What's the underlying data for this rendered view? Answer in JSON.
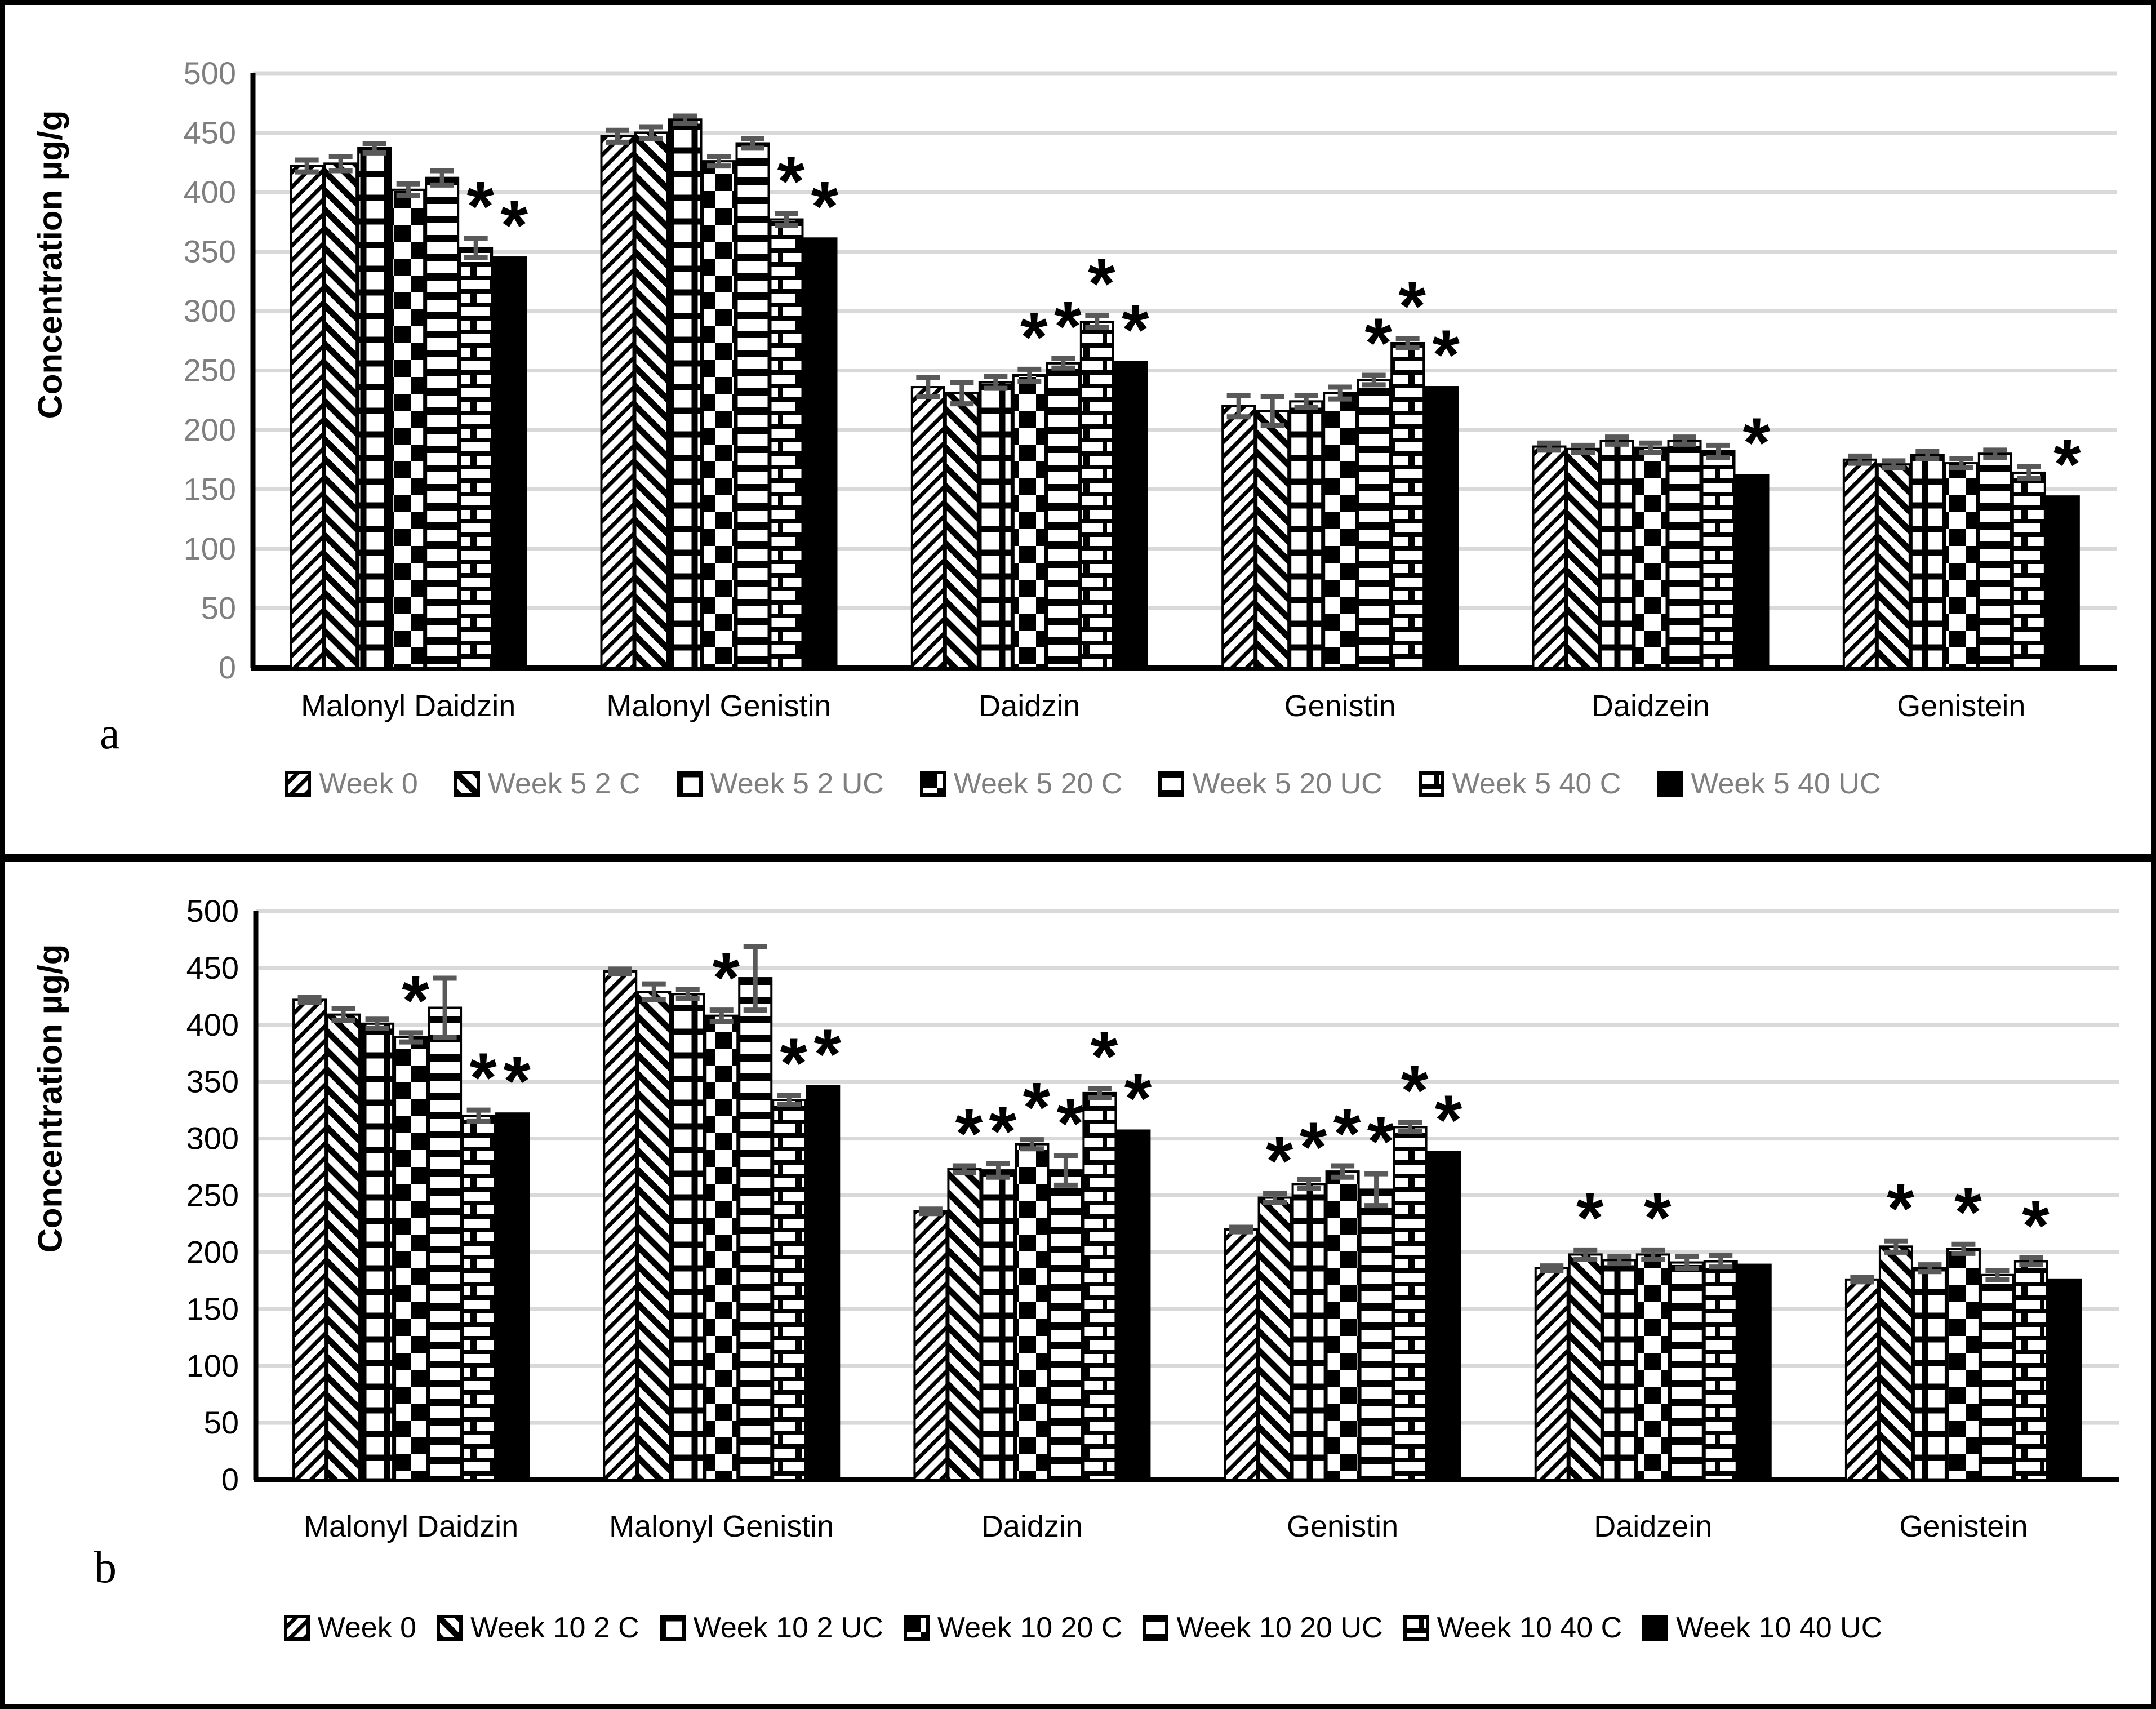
{
  "figure": {
    "border_color": "#000000",
    "background": "#ffffff",
    "gridline_color": "#d9d9d9",
    "error_bar_color": "#595959",
    "significance_marker": "*"
  },
  "chart_data": [
    {
      "type": "bar",
      "panel_label": "a",
      "ylabel": "Concentration µg/g",
      "ylim": [
        0,
        500
      ],
      "ytick_step": 50,
      "yticks": [
        0,
        50,
        100,
        150,
        200,
        250,
        300,
        350,
        400,
        450,
        500
      ],
      "grid": true,
      "legend_position": "bottom",
      "tick_label_color": "#7f7f7f",
      "legend_text_color": "#7f7f7f",
      "categories": [
        "Malonyl Daidzin",
        "Malonyl Genistin",
        "Daidzin",
        "Genistin",
        "Daidzein",
        "Genistein"
      ],
      "series": [
        {
          "name": "Week 0",
          "pattern": "diag-up",
          "values": [
            422,
            447,
            236,
            220,
            186,
            175
          ],
          "errors": [
            5,
            5,
            8,
            9,
            3,
            3
          ],
          "significant": [
            0,
            0,
            0,
            0,
            0,
            0
          ]
        },
        {
          "name": "Week 5 2 C",
          "pattern": "diag-down",
          "values": [
            424,
            450,
            231,
            216,
            184,
            171
          ],
          "errors": [
            6,
            5,
            9,
            12,
            3,
            3
          ],
          "significant": [
            0,
            0,
            0,
            0,
            0,
            0
          ]
        },
        {
          "name": "Week 5 2 UC",
          "pattern": "grid",
          "values": [
            437,
            461,
            240,
            224,
            191,
            179
          ],
          "errors": [
            4,
            3,
            5,
            5,
            3,
            3
          ],
          "significant": [
            0,
            0,
            0,
            0,
            0,
            0
          ]
        },
        {
          "name": "Week 5 20 C",
          "pattern": "checker",
          "values": [
            402,
            426,
            246,
            231,
            185,
            172
          ],
          "errors": [
            5,
            4,
            5,
            5,
            4,
            4
          ],
          "significant": [
            0,
            0,
            1,
            0,
            0,
            0
          ]
        },
        {
          "name": "Week 5 20 UC",
          "pattern": "hlines",
          "values": [
            412,
            441,
            256,
            242,
            191,
            180
          ],
          "errors": [
            6,
            4,
            4,
            4,
            3,
            3
          ],
          "significant": [
            0,
            0,
            1,
            1,
            0,
            0
          ]
        },
        {
          "name": "Week 5 40 C",
          "pattern": "brick",
          "values": [
            353,
            377,
            291,
            273,
            182,
            164
          ],
          "errors": [
            8,
            5,
            5,
            4,
            5,
            5
          ],
          "significant": [
            1,
            1,
            1,
            1,
            0,
            0
          ]
        },
        {
          "name": "Week 5 40 UC",
          "pattern": "solid",
          "values": [
            345,
            361,
            257,
            236,
            162,
            144
          ],
          "errors": [
            0,
            0,
            0,
            0,
            0,
            0
          ],
          "significant": [
            1,
            1,
            1,
            1,
            1,
            1
          ]
        }
      ]
    },
    {
      "type": "bar",
      "panel_label": "b",
      "ylabel": "Concentration µg/g",
      "ylim": [
        0,
        500
      ],
      "ytick_step": 50,
      "yticks": [
        0,
        50,
        100,
        150,
        200,
        250,
        300,
        350,
        400,
        450,
        500
      ],
      "grid": true,
      "legend_position": "bottom",
      "tick_label_color": "#000000",
      "legend_text_color": "#000000",
      "categories": [
        "Malonyl Daidzin",
        "Malonyl Genistin",
        "Daidzin",
        "Genistin",
        "Daidzein",
        "Genistein"
      ],
      "series": [
        {
          "name": "Week 0",
          "pattern": "diag-up",
          "values": [
            422,
            447,
            236,
            220,
            186,
            176
          ],
          "errors": [
            2,
            2,
            2,
            2,
            2,
            2
          ],
          "significant": [
            0,
            0,
            0,
            0,
            0,
            0
          ]
        },
        {
          "name": "Week 10 2 C",
          "pattern": "diag-down",
          "values": [
            409,
            429,
            273,
            248,
            198,
            205
          ],
          "errors": [
            5,
            7,
            3,
            4,
            4,
            5
          ],
          "significant": [
            0,
            0,
            1,
            1,
            1,
            1
          ]
        },
        {
          "name": "Week 10 2 UC",
          "pattern": "grid",
          "values": [
            401,
            427,
            272,
            260,
            193,
            186
          ],
          "errors": [
            4,
            4,
            6,
            4,
            3,
            3
          ],
          "significant": [
            0,
            0,
            1,
            1,
            0,
            0
          ]
        },
        {
          "name": "Week 10 20 C",
          "pattern": "checker",
          "values": [
            389,
            408,
            295,
            271,
            198,
            203
          ],
          "errors": [
            4,
            5,
            4,
            5,
            4,
            4
          ],
          "significant": [
            1,
            1,
            1,
            1,
            1,
            1
          ]
        },
        {
          "name": "Week 10 20 UC",
          "pattern": "hlines",
          "values": [
            415,
            441,
            272,
            255,
            191,
            180
          ],
          "errors": [
            26,
            28,
            13,
            14,
            5,
            4
          ],
          "significant": [
            0,
            0,
            1,
            1,
            0,
            0
          ]
        },
        {
          "name": "Week 10 40 C",
          "pattern": "brick",
          "values": [
            320,
            334,
            340,
            310,
            192,
            192
          ],
          "errors": [
            5,
            4,
            4,
            4,
            5,
            3
          ],
          "significant": [
            1,
            1,
            1,
            1,
            0,
            1
          ]
        },
        {
          "name": "Week 10 40 UC",
          "pattern": "solid",
          "values": [
            322,
            346,
            307,
            288,
            189,
            176
          ],
          "errors": [
            0,
            0,
            0,
            0,
            0,
            0
          ],
          "significant": [
            1,
            1,
            1,
            1,
            0,
            0
          ]
        }
      ]
    }
  ]
}
